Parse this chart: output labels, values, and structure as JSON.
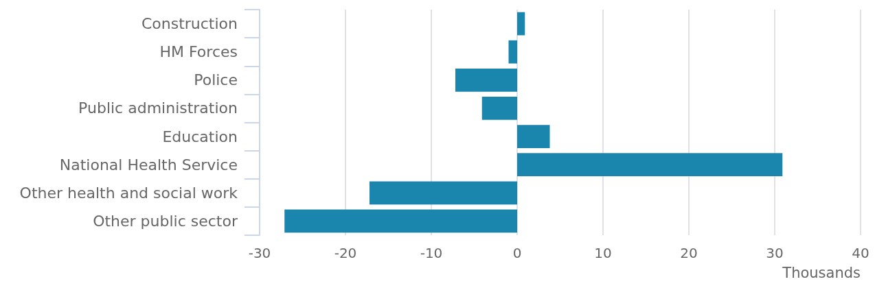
{
  "chart_data": {
    "type": "bar",
    "orientation": "horizontal",
    "xlabel": "Thousands",
    "categories": [
      "Construction",
      "HM Forces",
      "Police",
      "Public administration",
      "Education",
      "National Health Service",
      "Other health and social work",
      "Other public sector"
    ],
    "values": [
      0.9,
      -1.0,
      -7.2,
      -4.1,
      3.8,
      30.9,
      -17.2,
      -27.1
    ],
    "color": "#1a85ad",
    "xlim": [
      -30,
      40
    ],
    "xticks": [
      -30,
      -20,
      -10,
      0,
      10,
      20,
      30,
      40
    ],
    "grid": "x"
  }
}
